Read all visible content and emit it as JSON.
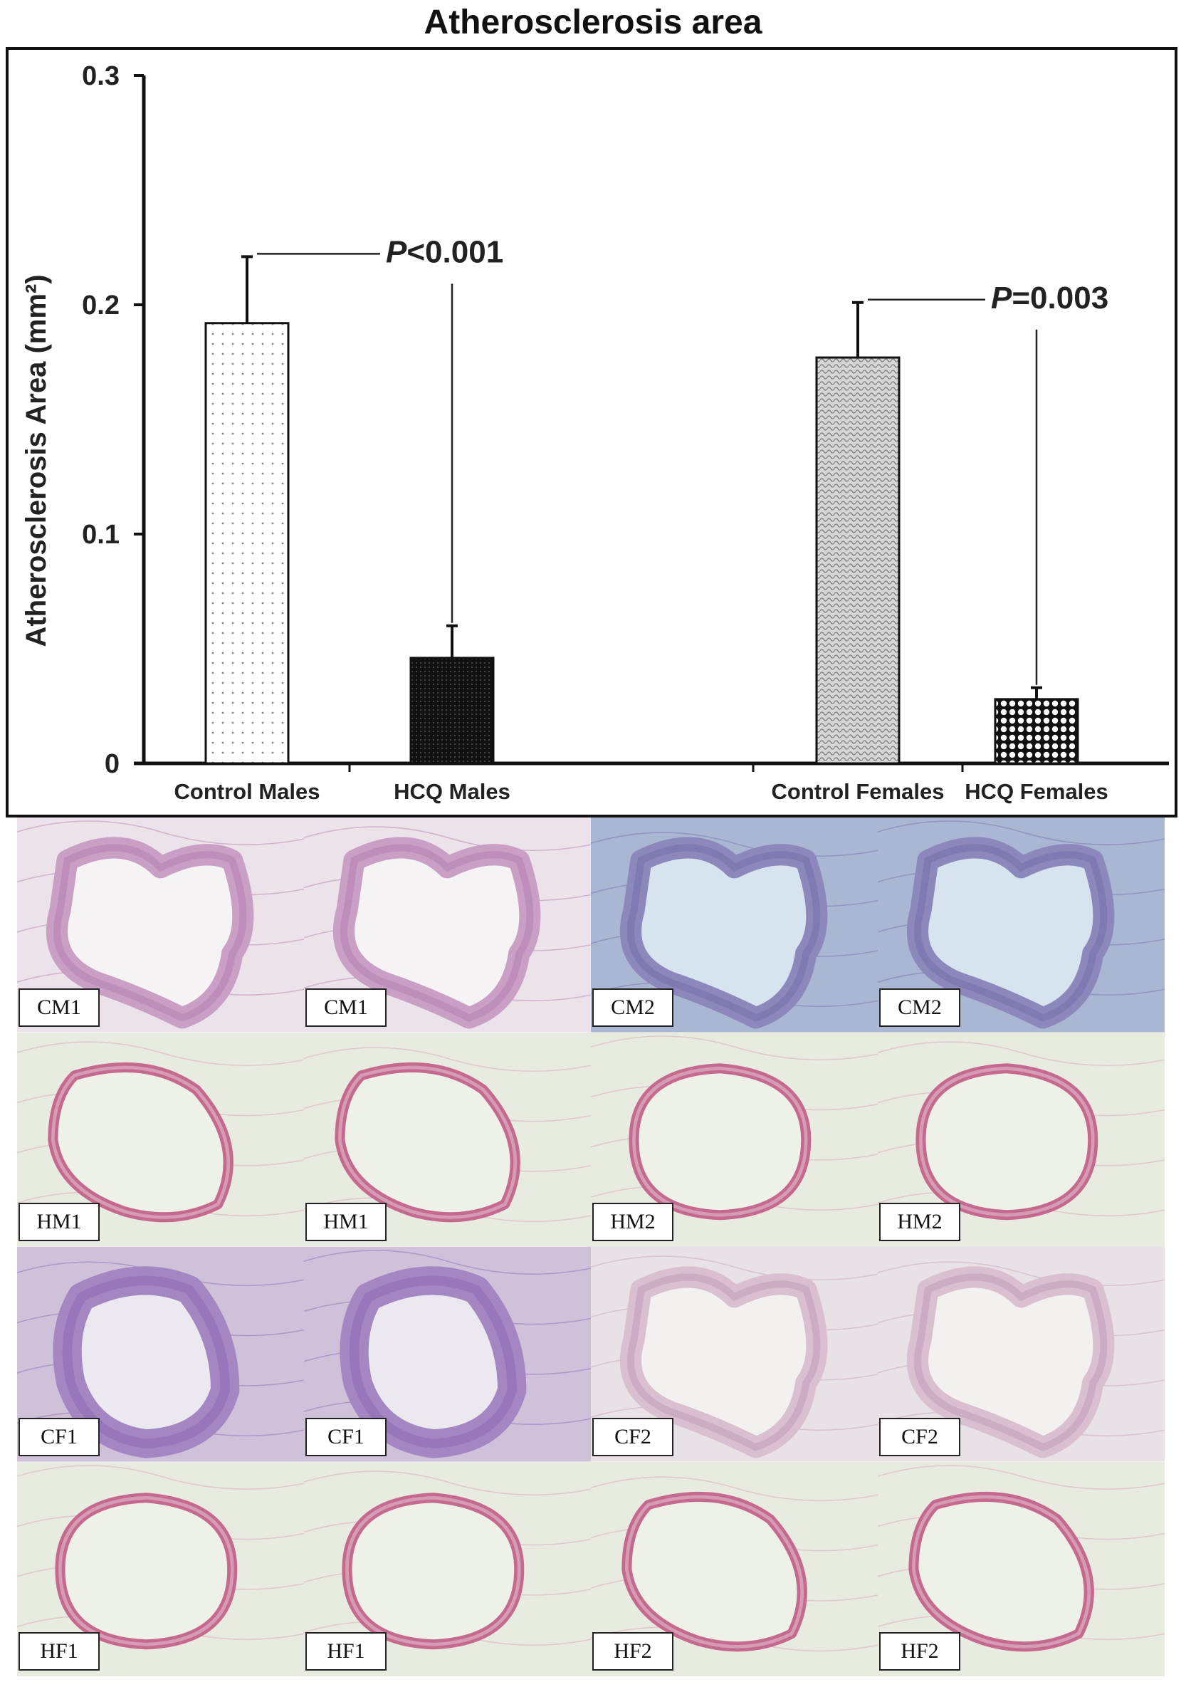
{
  "chart_data": {
    "type": "bar",
    "title": "Atherosclerosis area",
    "ylabel": "Atherosclerosis  Area (mm²)",
    "xlabel": "",
    "ylim": [
      0,
      0.3
    ],
    "yticks": [
      "0",
      "0.1",
      "0.2",
      "0.3"
    ],
    "ytick_values": [
      0,
      0.1,
      0.2,
      0.3
    ],
    "grid": false,
    "categories": [
      "Control Males",
      "HCQ Males",
      "Control Females",
      "HCQ Females"
    ],
    "values": [
      0.192,
      0.046,
      0.177,
      0.028
    ],
    "errors": [
      0.029,
      0.014,
      0.024,
      0.005
    ],
    "fill_patterns": [
      "light-dots",
      "dense-black",
      "wavy-gray",
      "checker"
    ],
    "annotations": [
      {
        "prefix": "P",
        "text": "<0.001",
        "between": [
          0,
          1
        ]
      },
      {
        "prefix": "P",
        "text": "=0.003",
        "between": [
          2,
          3
        ]
      }
    ]
  },
  "histology": {
    "tiles": [
      {
        "label": "CM1",
        "stain": "pink",
        "shape": "irregular"
      },
      {
        "label": "CM1",
        "stain": "pink",
        "shape": "irregular"
      },
      {
        "label": "CM2",
        "stain": "blue",
        "shape": "irregular"
      },
      {
        "label": "CM2",
        "stain": "blue",
        "shape": "irregular"
      },
      {
        "label": "HM1",
        "stain": "light",
        "shape": "ring"
      },
      {
        "label": "HM1",
        "stain": "light",
        "shape": "ring"
      },
      {
        "label": "HM2",
        "stain": "light",
        "shape": "oval"
      },
      {
        "label": "HM2",
        "stain": "light",
        "shape": "oval"
      },
      {
        "label": "CF1",
        "stain": "purple",
        "shape": "thick"
      },
      {
        "label": "CF1",
        "stain": "purple",
        "shape": "thick"
      },
      {
        "label": "CF2",
        "stain": "pale",
        "shape": "irregular"
      },
      {
        "label": "CF2",
        "stain": "pale",
        "shape": "irregular"
      },
      {
        "label": "HF1",
        "stain": "light",
        "shape": "oval"
      },
      {
        "label": "HF1",
        "stain": "light",
        "shape": "oval"
      },
      {
        "label": "HF2",
        "stain": "light",
        "shape": "ring"
      },
      {
        "label": "HF2",
        "stain": "light",
        "shape": "ring"
      }
    ]
  }
}
